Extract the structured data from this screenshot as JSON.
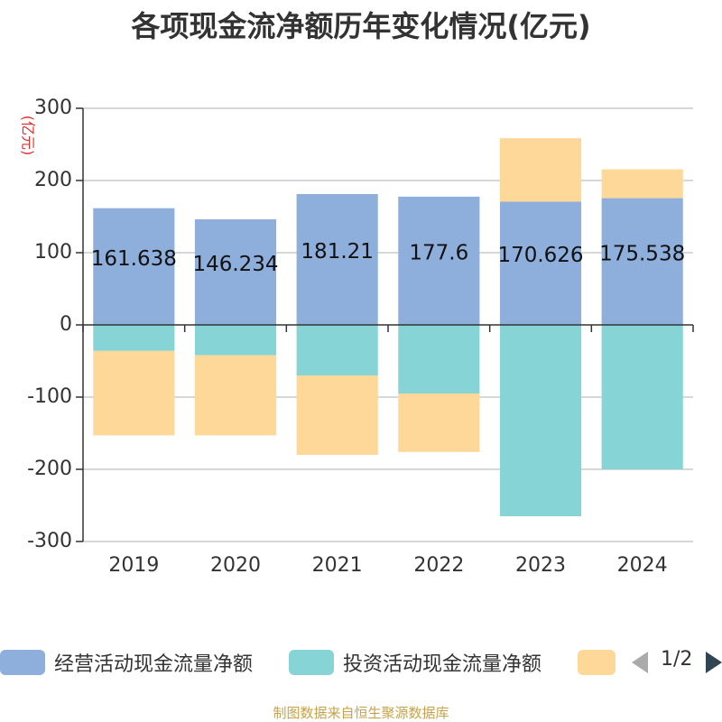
{
  "chart_data": {
    "type": "bar",
    "stacked": true,
    "title": "各项现金流净额历年变化情况(亿元)",
    "ylabel": "(亿元)",
    "categories": [
      "2019",
      "2020",
      "2021",
      "2022",
      "2023",
      "2024"
    ],
    "ylim": [
      -300,
      300
    ],
    "yticks": [
      300,
      200,
      100,
      0,
      -100,
      -200,
      -300
    ],
    "grid": true,
    "legend_position": "bottom",
    "series": [
      {
        "name": "经营活动现金流量净额",
        "color": "#8eaedb",
        "values": [
          161.638,
          146.234,
          181.21,
          177.6,
          170.626,
          175.538
        ],
        "data_labels": [
          "161.638",
          "146.234",
          "181.21",
          "177.6",
          "170.626",
          "175.538"
        ]
      },
      {
        "name": "投资活动现金流量净额",
        "color": "#86d4d6",
        "values": [
          -36,
          -42,
          -70,
          -95,
          -265,
          -200
        ]
      },
      {
        "name": "",
        "color": "#fed899",
        "values": [
          -117,
          -111,
          -110,
          -81,
          88,
          40
        ]
      }
    ]
  },
  "legend": {
    "pager": "1/2",
    "prev_icon": "triangle-left-icon",
    "next_icon": "triangle-right-icon"
  },
  "source": "制图数据来自恒生聚源数据库"
}
